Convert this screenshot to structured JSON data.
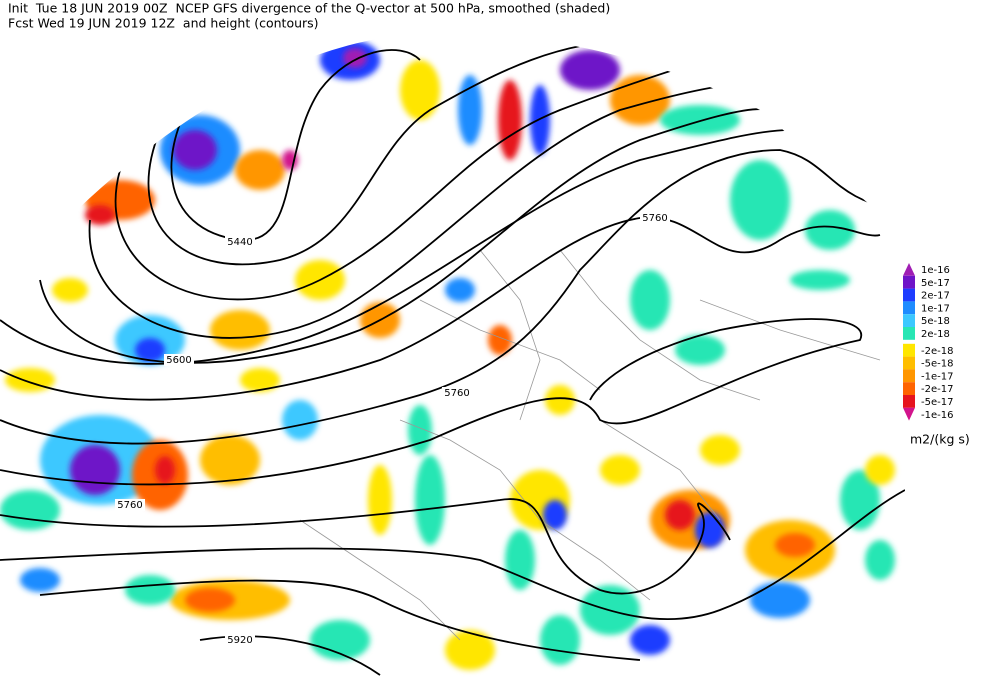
{
  "header": {
    "line1": "Init  Tue 18 JUN 2019 00Z  NCEP GFS divergence of the Q-vector at 500 hPa, smoothed (shaded)",
    "line2": "Fcst Wed 19 JUN 2019 12Z  and height (contours)"
  },
  "contour_labels": [
    "5440",
    "5600",
    "5760",
    "5760",
    "5760",
    "5920"
  ],
  "legend": {
    "items": [
      {
        "label": "1e-16",
        "color": "#a01eb4"
      },
      {
        "label": "5e-17",
        "color": "#6e14c8"
      },
      {
        "label": "2e-17",
        "color": "#1e3cff"
      },
      {
        "label": "1e-17",
        "color": "#1e8cff"
      },
      {
        "label": "5e-18",
        "color": "#3cc8ff"
      },
      {
        "label": "2e-18",
        "color": "#28e6b4"
      },
      {
        "label": "-2e-18",
        "color": "#ffe600"
      },
      {
        "label": "-5e-18",
        "color": "#ffbe00"
      },
      {
        "label": "-1e-17",
        "color": "#ff9600"
      },
      {
        "label": "-2e-17",
        "color": "#ff6400"
      },
      {
        "label": "-5e-17",
        "color": "#e6141e"
      },
      {
        "label": "-1e-16",
        "color": "#d2148c"
      }
    ],
    "unit": "m2/(kg s)"
  }
}
